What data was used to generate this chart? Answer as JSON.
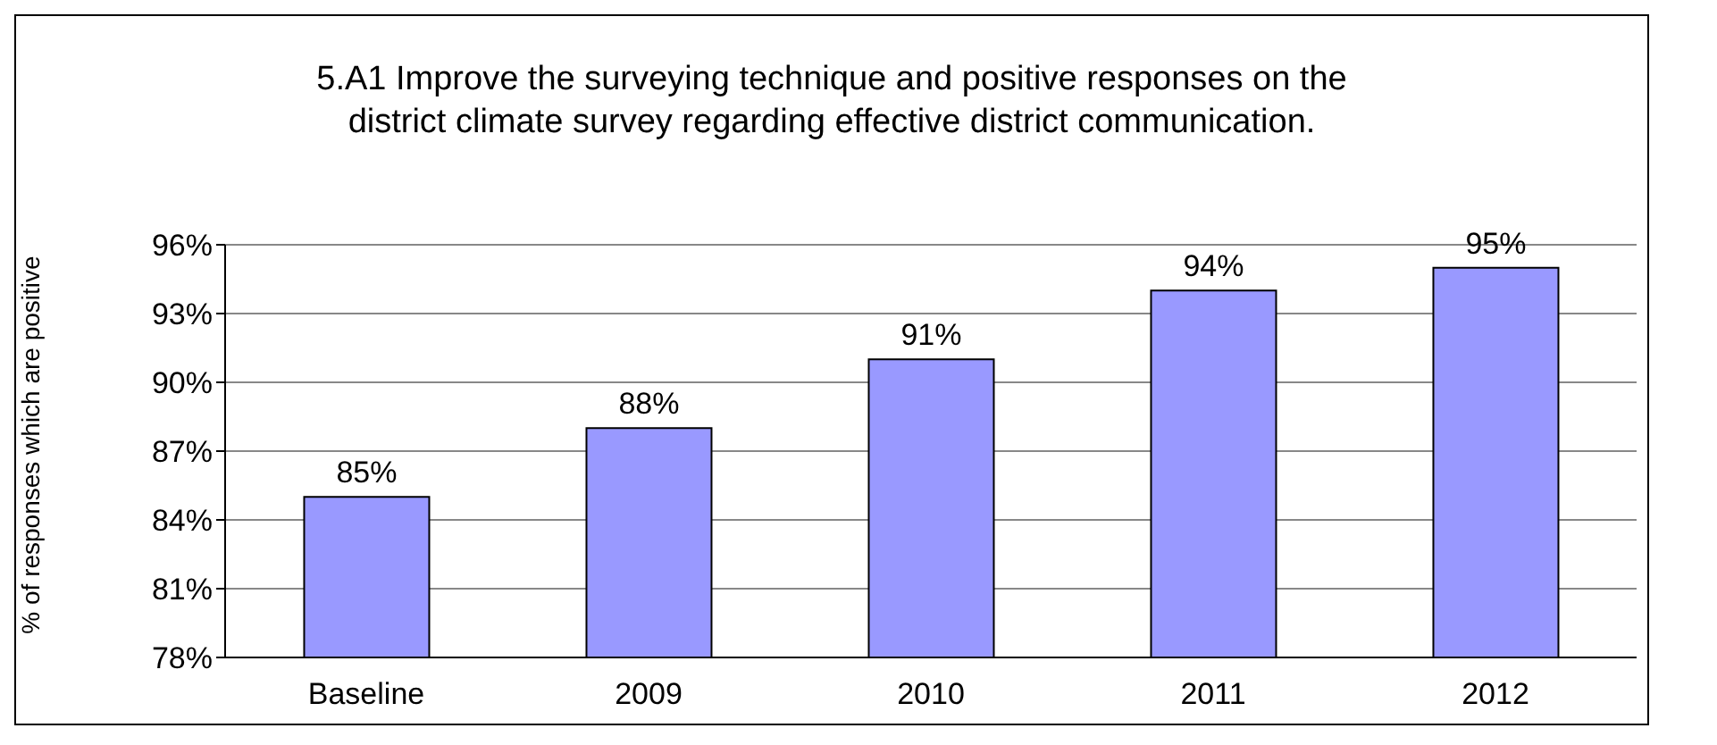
{
  "chart_data": {
    "type": "bar",
    "title": "5.A1  Improve the surveying technique and positive responses on the\ndistrict climate survey regarding effective district communication.",
    "ylabel": "% of responses which are positive",
    "categories": [
      "Baseline",
      "2009",
      "2010",
      "2011",
      "2012"
    ],
    "values": [
      85,
      88,
      91,
      94,
      95
    ],
    "value_labels": [
      "85%",
      "88%",
      "91%",
      "94%",
      "95%"
    ],
    "color": "#9999ff",
    "ylim": [
      78,
      96
    ],
    "yticks": [
      {
        "value": 78,
        "label": "78%"
      },
      {
        "value": 81,
        "label": "81%"
      },
      {
        "value": 84,
        "label": "84%"
      },
      {
        "value": 87,
        "label": "87%"
      },
      {
        "value": 90,
        "label": "90%"
      },
      {
        "value": 93,
        "label": "93%"
      },
      {
        "value": 96,
        "label": "96%"
      }
    ],
    "grid": "y",
    "legend": false
  }
}
